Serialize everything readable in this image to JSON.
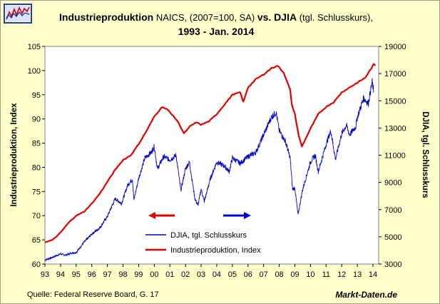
{
  "title": {
    "part1_bold": "Industrieproduktion",
    "part2": " NAICS, (2007=100, SA) ",
    "part3_bold": "vs. DJIA",
    "part4": " (tgl. Schlusskurs),",
    "line2": "1993 - Jan. 2014"
  },
  "footer": {
    "source": "Quelle: Federal Reserve Board, G. 17",
    "brand": "Markt-Daten.de"
  },
  "colors": {
    "ip": "#e00000",
    "djia": "#0000cc",
    "plot_bg": "#ffffff",
    "frame_bg": "#ffffcc"
  },
  "chart_data": {
    "type": "line",
    "title": "Industrieproduktion NAICS, (2007=100, SA) vs. DJIA (tgl. Schlusskurs), 1993 - Jan. 2014",
    "xlabel": "",
    "ylabel_left": "Industrieproduktion, Index",
    "ylabel_right": "DJIA, tgl. Schlusskurs",
    "xlim": [
      1993,
      2014.6
    ],
    "ylim_left": [
      60,
      105
    ],
    "ylim_right": [
      3000,
      19000
    ],
    "x_ticks": [
      {
        "x": 1993,
        "label": "93"
      },
      {
        "x": 1994,
        "label": "94"
      },
      {
        "x": 1995,
        "label": "95"
      },
      {
        "x": 1996,
        "label": "96"
      },
      {
        "x": 1997,
        "label": "97"
      },
      {
        "x": 1998,
        "label": "98"
      },
      {
        "x": 1999,
        "label": "99"
      },
      {
        "x": 2000,
        "label": "00"
      },
      {
        "x": 2001,
        "label": "01"
      },
      {
        "x": 2002,
        "label": "02"
      },
      {
        "x": 2003,
        "label": "03"
      },
      {
        "x": 2004,
        "label": "04"
      },
      {
        "x": 2005,
        "label": "05"
      },
      {
        "x": 2006,
        "label": "06"
      },
      {
        "x": 2007,
        "label": "07"
      },
      {
        "x": 2008,
        "label": "08"
      },
      {
        "x": 2009,
        "label": "09"
      },
      {
        "x": 2010,
        "label": "10"
      },
      {
        "x": 2011,
        "label": "11"
      },
      {
        "x": 2012,
        "label": "12"
      },
      {
        "x": 2013,
        "label": "13"
      },
      {
        "x": 2014,
        "label": "14"
      }
    ],
    "y_left_ticks": [
      "60",
      "65",
      "70",
      "75",
      "80",
      "85",
      "90",
      "95",
      "100",
      "105"
    ],
    "y_right_ticks": [
      "3000",
      "5000",
      "7000",
      "9000",
      "11000",
      "13000",
      "15000",
      "17000",
      "19000"
    ],
    "grid": false,
    "legend_position": "bottom-center",
    "annotations": [
      "arrow-left-red (left axis)",
      "arrow-right-blue (right axis)"
    ],
    "series": [
      {
        "name": "DJIA, tgl. Schlusskurs",
        "axis": "right",
        "points": [
          [
            1993.0,
            3300
          ],
          [
            1993.5,
            3500
          ],
          [
            1994.0,
            3750
          ],
          [
            1994.3,
            3650
          ],
          [
            1994.7,
            3800
          ],
          [
            1995.0,
            3850
          ],
          [
            1995.5,
            4600
          ],
          [
            1996.0,
            5200
          ],
          [
            1996.5,
            5650
          ],
          [
            1997.0,
            6500
          ],
          [
            1997.5,
            7800
          ],
          [
            1997.9,
            7450
          ],
          [
            1998.3,
            8800
          ],
          [
            1998.6,
            9250
          ],
          [
            1998.7,
            7700
          ],
          [
            1999.0,
            9300
          ],
          [
            1999.4,
            10800
          ],
          [
            1999.8,
            11200
          ],
          [
            2000.0,
            11650
          ],
          [
            2000.2,
            10000
          ],
          [
            2000.6,
            10900
          ],
          [
            2001.0,
            10650
          ],
          [
            2001.4,
            11000
          ],
          [
            2001.7,
            8400
          ],
          [
            2002.0,
            10000
          ],
          [
            2002.25,
            10500
          ],
          [
            2002.6,
            7800
          ],
          [
            2002.8,
            7300
          ],
          [
            2003.0,
            8500
          ],
          [
            2003.2,
            7600
          ],
          [
            2003.6,
            9300
          ],
          [
            2004.0,
            10500
          ],
          [
            2004.5,
            10200
          ],
          [
            2004.8,
            9800
          ],
          [
            2005.0,
            10800
          ],
          [
            2005.5,
            10400
          ],
          [
            2006.0,
            10900
          ],
          [
            2006.5,
            11200
          ],
          [
            2007.0,
            12500
          ],
          [
            2007.5,
            13800
          ],
          [
            2007.8,
            14150
          ],
          [
            2008.0,
            12800
          ],
          [
            2008.4,
            12000
          ],
          [
            2008.7,
            10800
          ],
          [
            2008.85,
            8500
          ],
          [
            2009.0,
            8600
          ],
          [
            2009.2,
            6600
          ],
          [
            2009.5,
            8500
          ],
          [
            2010.0,
            10500
          ],
          [
            2010.3,
            11000
          ],
          [
            2010.5,
            9800
          ],
          [
            2011.0,
            11800
          ],
          [
            2011.3,
            12800
          ],
          [
            2011.6,
            10700
          ],
          [
            2012.0,
            12600
          ],
          [
            2012.3,
            13200
          ],
          [
            2012.5,
            12500
          ],
          [
            2012.9,
            13100
          ],
          [
            2013.0,
            13800
          ],
          [
            2013.4,
            15200
          ],
          [
            2013.7,
            14800
          ],
          [
            2013.95,
            16400
          ],
          [
            2014.05,
            15600
          ]
        ]
      },
      {
        "name": "Industrieproduktion, Index",
        "axis": "left",
        "points": [
          [
            1993.0,
            64.5
          ],
          [
            1993.5,
            65.0
          ],
          [
            1994.0,
            66.5
          ],
          [
            1994.5,
            68.5
          ],
          [
            1995.0,
            70.0
          ],
          [
            1995.5,
            70.8
          ],
          [
            1996.0,
            72.5
          ],
          [
            1996.5,
            74.5
          ],
          [
            1997.0,
            77.0
          ],
          [
            1997.5,
            79.5
          ],
          [
            1998.0,
            81.5
          ],
          [
            1998.5,
            82.5
          ],
          [
            1999.0,
            84.8
          ],
          [
            1999.5,
            87.5
          ],
          [
            2000.0,
            90.5
          ],
          [
            2000.5,
            92.5
          ],
          [
            2000.9,
            91.8
          ],
          [
            2001.5,
            89.5
          ],
          [
            2001.9,
            87.0
          ],
          [
            2002.3,
            88.5
          ],
          [
            2002.7,
            89.3
          ],
          [
            2003.0,
            88.8
          ],
          [
            2003.5,
            89.5
          ],
          [
            2004.0,
            91.0
          ],
          [
            2004.5,
            93.0
          ],
          [
            2005.0,
            95.0
          ],
          [
            2005.5,
            95.5
          ],
          [
            2005.7,
            93.5
          ],
          [
            2006.0,
            96.5
          ],
          [
            2006.5,
            98.2
          ],
          [
            2007.0,
            99.2
          ],
          [
            2007.5,
            100.5
          ],
          [
            2007.9,
            101.0
          ],
          [
            2008.3,
            99.5
          ],
          [
            2008.7,
            96.0
          ],
          [
            2008.8,
            93.0
          ],
          [
            2009.0,
            91.0
          ],
          [
            2009.25,
            86.5
          ],
          [
            2009.45,
            84.3
          ],
          [
            2010.0,
            88.0
          ],
          [
            2010.5,
            91.0
          ],
          [
            2011.0,
            92.5
          ],
          [
            2011.5,
            93.5
          ],
          [
            2012.0,
            95.5
          ],
          [
            2012.5,
            96.5
          ],
          [
            2013.0,
            97.5
          ],
          [
            2013.5,
            98.5
          ],
          [
            2013.9,
            100.5
          ],
          [
            2014.05,
            101.3
          ],
          [
            2014.15,
            101.0
          ]
        ]
      }
    ]
  }
}
